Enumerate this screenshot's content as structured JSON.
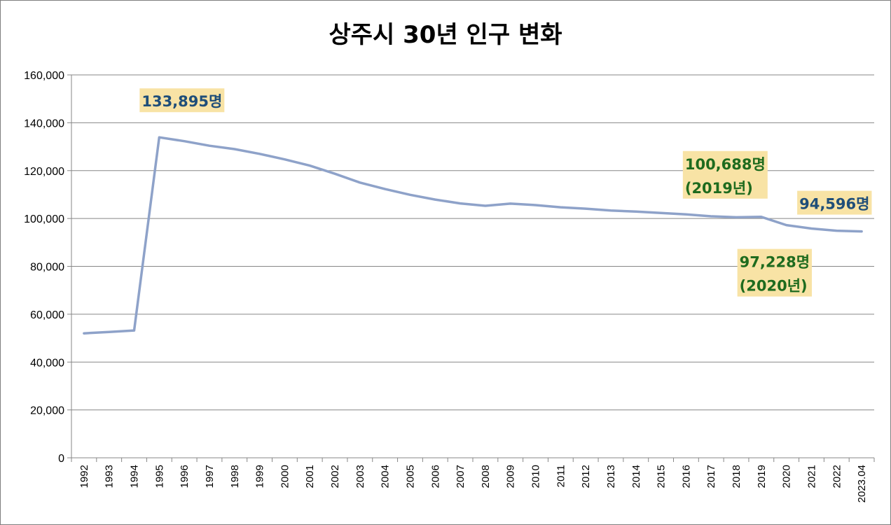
{
  "chart_data": {
    "type": "line",
    "title": "상주시 30년 인구 변화",
    "xlabel": "",
    "ylabel": "",
    "ylim": [
      0,
      160000
    ],
    "yticks": [
      "0",
      "20,000",
      "40,000",
      "60,000",
      "80,000",
      "100,000",
      "120,000",
      "140,000",
      "160,000"
    ],
    "grid": true,
    "legend": "none",
    "categories": [
      "1992",
      "1993",
      "1994",
      "1995",
      "1996",
      "1997",
      "1998",
      "1999",
      "2000",
      "2001",
      "2002",
      "2003",
      "2004",
      "2005",
      "2006",
      "2007",
      "2008",
      "2009",
      "2010",
      "2011",
      "2012",
      "2013",
      "2014",
      "2015",
      "2016",
      "2017",
      "2018",
      "2019",
      "2020",
      "2021",
      "2022",
      "2023.04"
    ],
    "series": [
      {
        "color": "#8ea2c9",
        "values": [
          52000,
          52600,
          53200,
          133895,
          132300,
          130400,
          129000,
          127000,
          124700,
          122100,
          118700,
          115000,
          112300,
          109900,
          107900,
          106300,
          105300,
          106200,
          105600,
          104700,
          104100,
          103300,
          102900,
          102300,
          101700,
          100900,
          100500,
          100688,
          97228,
          95800,
          94900,
          94596
        ]
      }
    ],
    "annotations": [
      {
        "lines": [
          "133,895명"
        ],
        "color": "#1f4e79",
        "index": 3
      },
      {
        "lines": [
          "100,688명",
          "(2019년)"
        ],
        "color": "#1e6b1e",
        "index": 27
      },
      {
        "lines": [
          "97,228명",
          "(2020년)"
        ],
        "color": "#1e6b1e",
        "index": 28
      },
      {
        "lines": [
          "94,596명"
        ],
        "color": "#1f4e79",
        "index": 31
      }
    ]
  }
}
